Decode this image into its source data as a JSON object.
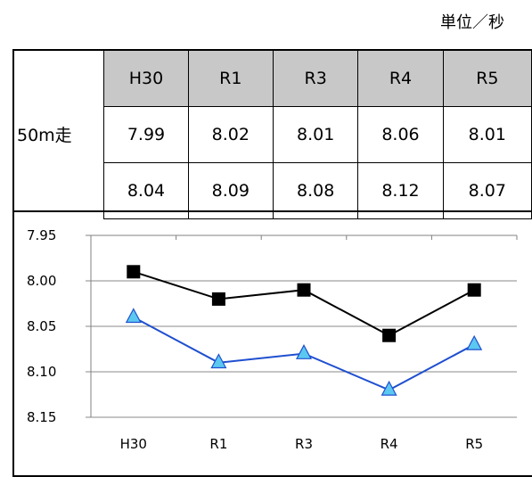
{
  "unit_label": "単位／秒",
  "table": {
    "row_label": "50m走",
    "headers": [
      "H30",
      "R1",
      "R3",
      "R4",
      "R5"
    ],
    "rows": [
      [
        "7.99",
        "8.02",
        "8.01",
        "8.06",
        "8.01"
      ],
      [
        "8.04",
        "8.09",
        "8.08",
        "8.12",
        "8.07"
      ]
    ]
  },
  "chart_data": {
    "type": "line",
    "categories": [
      "H30",
      "R1",
      "R3",
      "R4",
      "R5"
    ],
    "y_axis": {
      "min": 7.95,
      "max": 8.15,
      "step": 0.05,
      "reversed": true,
      "tick_labels": [
        "7.95",
        "8.00",
        "8.05",
        "8.10",
        "8.15"
      ]
    },
    "grid": true,
    "series": [
      {
        "values": [
          7.99,
          8.02,
          8.01,
          8.06,
          8.01
        ],
        "color": "#000000",
        "marker": "square"
      },
      {
        "values": [
          8.04,
          8.09,
          8.08,
          8.12,
          8.07
        ],
        "color": "#1f4fd0",
        "marker_fill": "#5bc8f0",
        "marker": "triangle"
      }
    ]
  }
}
